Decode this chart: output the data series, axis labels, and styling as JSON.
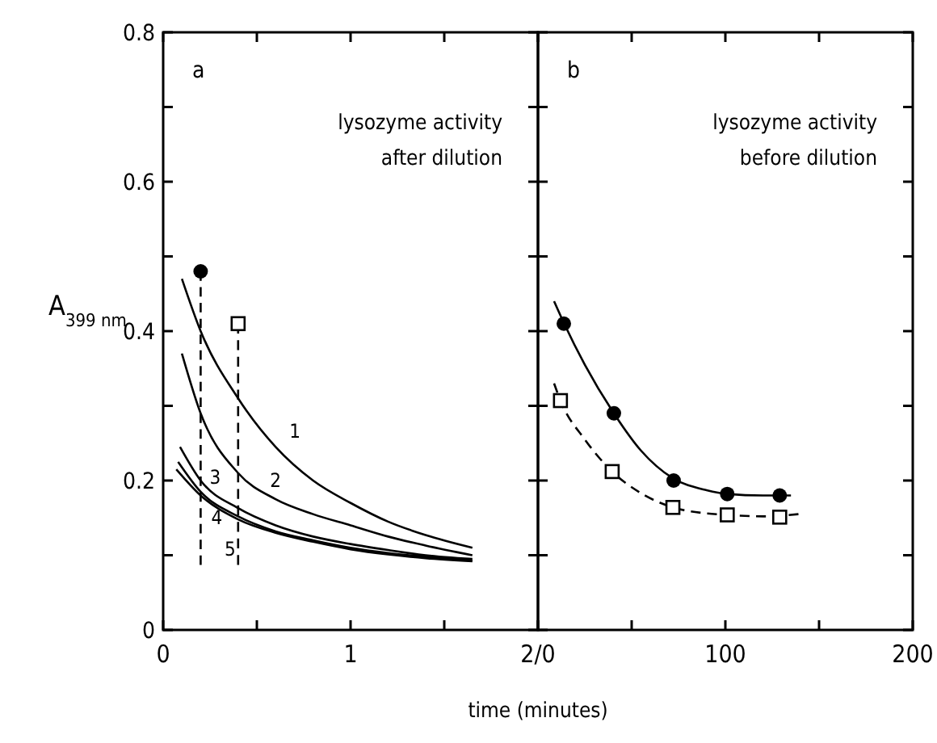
{
  "chart_data": [
    {
      "type": "line",
      "title": "lysozyme activity\nafter dilution",
      "ylabel": "A$_{399 nm}$",
      "xlabel": "time (minutes)",
      "tick_labels": true,
      "grid": false,
      "xlim": [
        0,
        2
      ],
      "xticks": [
        0,
        {
          "value": 0.5,
          "label": null
        },
        1,
        {
          "value": 1.5,
          "label": null
        },
        {
          "value": 2,
          "label": "2/0"
        }
      ],
      "ylim": [
        0,
        0.8
      ],
      "yticks": [
        0,
        {
          "value": 0.1,
          "label": null
        },
        0.2,
        {
          "value": 0.3,
          "label": null
        },
        0.4,
        {
          "value": 0.5,
          "label": null
        },
        0.6,
        {
          "value": 0.7,
          "label": null
        },
        {
          "value": 0.8,
          "label": "0.8"
        }
      ],
      "annotations": [
        "a"
      ],
      "series": [
        {
          "name": "1",
          "color": "#000000",
          "line_style": "solid",
          "x": [
            0.1,
            0.2,
            0.4,
            0.6,
            0.8,
            1.0,
            1.2,
            1.4,
            1.65
          ],
          "values": [
            0.47,
            0.4,
            0.31,
            0.245,
            0.2,
            0.17,
            0.145,
            0.127,
            0.11
          ]
        },
        {
          "name": "2",
          "color": "#000000",
          "line_style": "solid",
          "x": [
            0.1,
            0.2,
            0.4,
            0.6,
            0.8,
            1.0,
            1.2,
            1.4,
            1.65
          ],
          "values": [
            0.37,
            0.29,
            0.21,
            0.175,
            0.155,
            0.14,
            0.125,
            0.113,
            0.1
          ]
        },
        {
          "name": "3",
          "color": "#000000",
          "line_style": "solid",
          "x": [
            0.09,
            0.2,
            0.4,
            0.6,
            0.8,
            1.0,
            1.2,
            1.4,
            1.65
          ],
          "values": [
            0.245,
            0.2,
            0.163,
            0.14,
            0.125,
            0.115,
            0.107,
            0.1,
            0.095
          ]
        },
        {
          "name": "4",
          "color": "#000000",
          "line_style": "solid",
          "x": [
            0.08,
            0.2,
            0.4,
            0.6,
            0.8,
            1.0,
            1.2,
            1.4,
            1.65
          ],
          "values": [
            0.225,
            0.185,
            0.152,
            0.132,
            0.12,
            0.11,
            0.103,
            0.098,
            0.093
          ]
        },
        {
          "name": "5",
          "color": "#000000",
          "line_style": "solid",
          "x": [
            0.07,
            0.2,
            0.4,
            0.6,
            0.8,
            1.0,
            1.2,
            1.4,
            1.65
          ],
          "values": [
            0.215,
            0.18,
            0.148,
            0.13,
            0.118,
            0.108,
            0.101,
            0.096,
            0.092
          ]
        },
        {
          "color": "#000000",
          "line_style": "dashed",
          "x": [
            0.2,
            0.2
          ],
          "values": [
            0.48,
            0.087
          ]
        },
        {
          "color": "#000000",
          "line_style": "dashed",
          "x": [
            0.4,
            0.4
          ],
          "values": [
            0.41,
            0.087
          ]
        },
        {
          "type": "scatter",
          "color": "#000000",
          "marker": "circle",
          "x": [
            0.2
          ],
          "values": [
            0.48
          ]
        },
        {
          "type": "scatter",
          "color": "#000000",
          "marker": "square",
          "x": [
            0.4
          ],
          "values": [
            0.41
          ]
        }
      ]
    },
    {
      "type": "line",
      "title": "lysozyme activity\nbefore dilution",
      "tick_labels": "x",
      "grid": false,
      "xlim": [
        0,
        200
      ],
      "xticks": [
        {
          "value": 0,
          "label": null
        },
        {
          "value": 50,
          "label": null
        },
        100,
        {
          "value": 150,
          "label": null
        },
        200
      ],
      "ylim": [
        0,
        0.8
      ],
      "yticks": [
        0,
        0.1,
        0.2,
        0.3,
        0.4,
        0.5,
        0.6,
        0.7,
        0.8
      ],
      "annotations": [
        "b"
      ],
      "series": [
        {
          "color": "#000000",
          "line_style": "solid",
          "x": [
            8.6,
            14,
            25,
            40.5,
            55,
            72,
            90,
            101,
            120,
            135
          ],
          "values": [
            0.44,
            0.41,
            0.355,
            0.29,
            0.24,
            0.203,
            0.187,
            0.182,
            0.18,
            0.18
          ]
        },
        {
          "color": "#000000",
          "line_style": "dashed",
          "x": [
            8.6,
            12,
            25,
            39.6,
            55,
            72,
            90,
            101,
            120,
            139
          ],
          "values": [
            0.33,
            0.307,
            0.255,
            0.212,
            0.183,
            0.164,
            0.156,
            0.154,
            0.152,
            0.155
          ]
        },
        {
          "type": "scatter",
          "color": "#000000",
          "marker": "circle",
          "x": [
            13.8,
            40.5,
            72.4,
            101,
            129
          ],
          "values": [
            0.41,
            0.29,
            0.2,
            0.182,
            0.18
          ]
        },
        {
          "type": "scatter",
          "color": "#000000",
          "marker": "square",
          "x": [
            12,
            39.6,
            72,
            101,
            129
          ],
          "values": [
            0.307,
            0.212,
            0.164,
            0.154,
            0.151
          ]
        }
      ]
    }
  ]
}
